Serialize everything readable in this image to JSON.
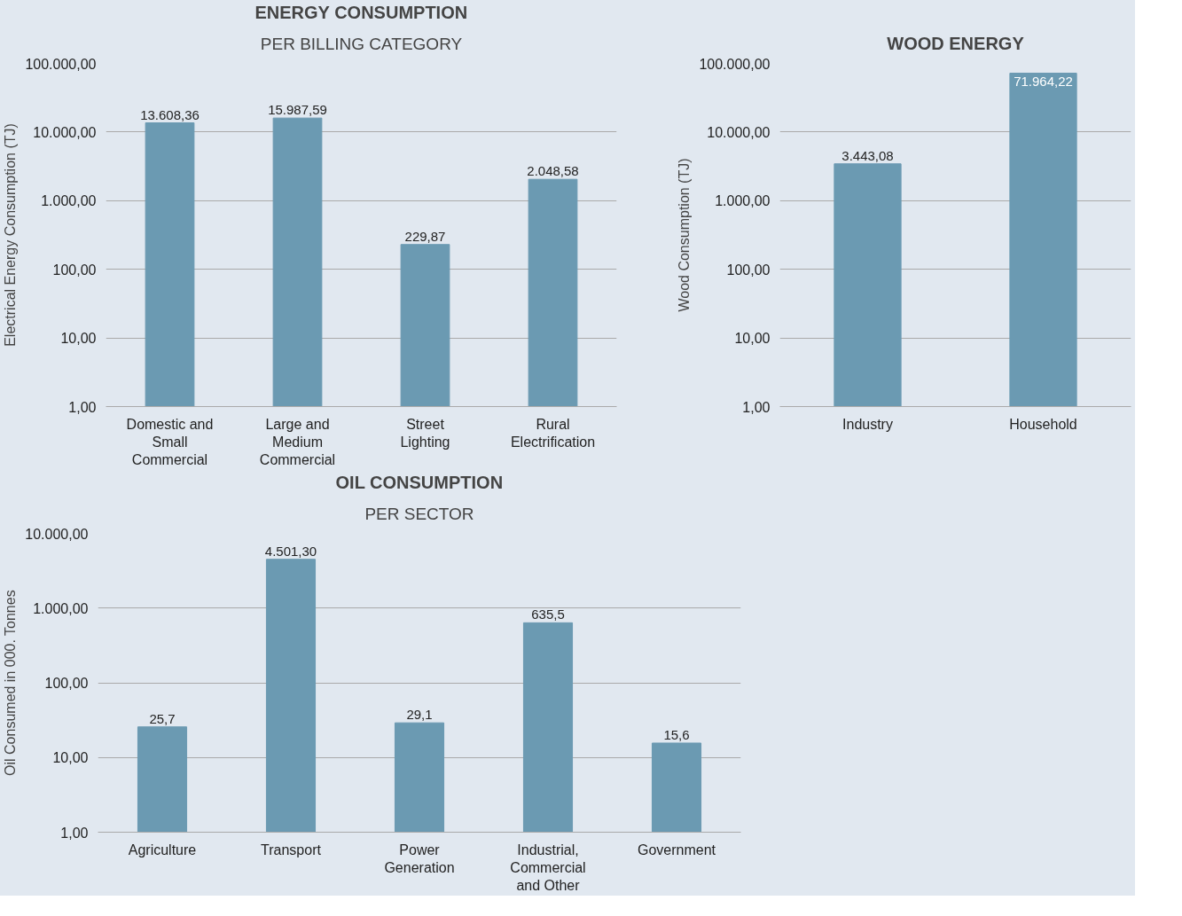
{
  "chart_data": [
    {
      "type": "bar",
      "title": "ENERGY CONSUMPTION",
      "subtitle": "PER BILLING CATEGORY",
      "ylabel": "Electrical Energy Consumption (TJ)",
      "categories": [
        "Domestic and Small Commercial",
        "Large and Medium Commercial",
        "Street Lighting",
        "Rural Electrification"
      ],
      "values": [
        13608.36,
        15987.59,
        229.87,
        2048.58
      ],
      "value_labels": [
        "13.608,36",
        "15.987,59",
        "229,87",
        "2.048,58"
      ],
      "color": "#6b9ab2",
      "log": "y",
      "grid": "y",
      "ylim": [
        1,
        100000
      ],
      "yticks": [
        {
          "value": 1,
          "label": "1,00"
        },
        {
          "value": 10,
          "label": "10,00"
        },
        {
          "value": 100,
          "label": "100,00"
        },
        {
          "value": 1000,
          "label": "1.000,00"
        },
        {
          "value": 10000,
          "label": "10.000,00"
        },
        {
          "value": 100000,
          "label": "100.000,00"
        }
      ]
    },
    {
      "type": "bar",
      "title": "WOOD ENERGY",
      "ylabel": "Wood Consumption (TJ)",
      "categories": [
        "Industry",
        "Household"
      ],
      "values": [
        3443.08,
        71964.22
      ],
      "value_labels": [
        "3.443,08",
        "71.964,22"
      ],
      "color": "#6b9ab2",
      "log": "y",
      "grid": "y",
      "ylim": [
        1,
        100000
      ],
      "yticks": [
        {
          "value": 1,
          "label": "1,00"
        },
        {
          "value": 10,
          "label": "10,00"
        },
        {
          "value": 100,
          "label": "100,00"
        },
        {
          "value": 1000,
          "label": "1.000,00"
        },
        {
          "value": 10000,
          "label": "10.000,00"
        },
        {
          "value": 100000,
          "label": "100.000,00"
        }
      ]
    },
    {
      "type": "bar",
      "title": "OIL CONSUMPTION",
      "subtitle": "PER SECTOR",
      "ylabel": "Oil Consumed in 000. Tonnes",
      "categories": [
        "Agriculture",
        "Transport",
        "Power Generation",
        "Industrial, Commercial and Other",
        "Government"
      ],
      "values": [
        25.7,
        4501.3,
        29.1,
        635.5,
        15.6
      ],
      "value_labels": [
        "25,7",
        "4.501,30",
        "29,1",
        "635,5",
        "15,6"
      ],
      "color": "#6b9ab2",
      "log": "y",
      "grid": "y",
      "ylim": [
        1,
        10000
      ],
      "yticks": [
        {
          "value": 1,
          "label": "1,00"
        },
        {
          "value": 10,
          "label": "10,00"
        },
        {
          "value": 100,
          "label": "100,00"
        },
        {
          "value": 1000,
          "label": "1.000,00"
        },
        {
          "value": 10000,
          "label": "10.000,00"
        }
      ]
    }
  ]
}
